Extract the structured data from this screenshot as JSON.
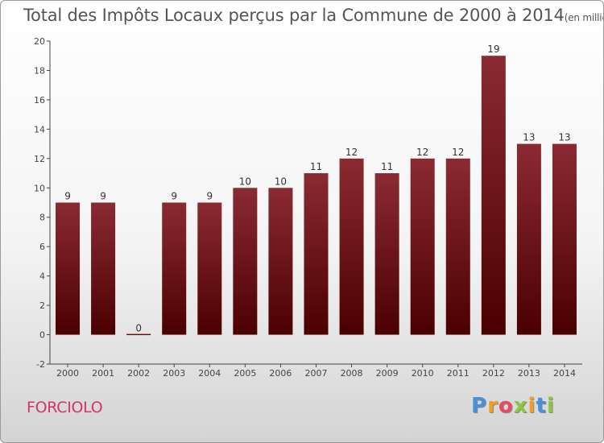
{
  "chart_data": {
    "type": "bar",
    "title": "Total des Impôts Locaux perçus par la Commune de 2000 à 2014",
    "unit": "(en milliers d'€)",
    "categories": [
      "2000",
      "2001",
      "2002",
      "2003",
      "2004",
      "2005",
      "2006",
      "2007",
      "2008",
      "2009",
      "2010",
      "2011",
      "2012",
      "2013",
      "2014"
    ],
    "values": [
      9,
      9,
      0,
      9,
      9,
      10,
      10,
      11,
      12,
      11,
      12,
      12,
      19,
      13,
      13
    ],
    "ylim": [
      -2,
      20
    ],
    "yticks": [
      -2,
      0,
      2,
      4,
      6,
      8,
      10,
      12,
      14,
      16,
      18,
      20
    ],
    "xlabel": "",
    "ylabel": "",
    "grid": false
  },
  "commune": "FORCIOLO",
  "brand": {
    "letters": [
      "P",
      "r",
      "o",
      "x",
      "i",
      "t",
      "i"
    ],
    "colors": [
      "#4a90d9",
      "#f0a020",
      "#e84a5f",
      "#8cc63f",
      "#f0a020",
      "#4a90d9",
      "#8cc63f"
    ]
  },
  "colors": {
    "bar_top": "#8b2a33",
    "bar_bottom": "#4a0000",
    "commune": "#d3346c"
  }
}
